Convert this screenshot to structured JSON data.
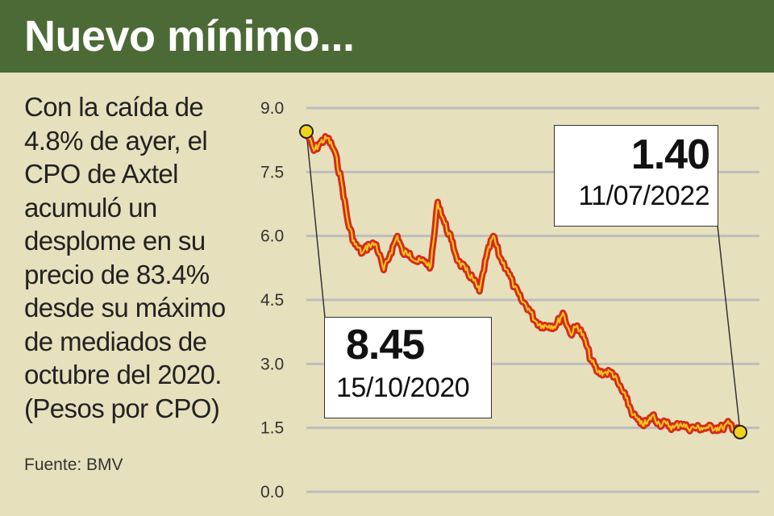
{
  "header": {
    "title": "Nuevo mínimo..."
  },
  "description": {
    "lines": [
      "Con la caída de",
      "4.8% de ayer, el",
      "CPO de Axtel",
      "acumuló un",
      "desplome en su",
      "precio de 83.4%",
      "desde su máximo",
      "de mediados de",
      "octubre del 2020.",
      "(Pesos por CPO)"
    ]
  },
  "source": "Fuente: BMV",
  "colors": {
    "header_bg": "#4b6a35",
    "background": "#e6e0bd",
    "line_outer": "#d42a1b",
    "line_inner": "#f6c318",
    "marker": "#f2d31b",
    "grid": "#bdbdbd"
  },
  "callouts": {
    "start": {
      "value": "8.45",
      "date": "15/10/2020"
    },
    "end": {
      "value": "1.40",
      "date": "11/07/2022"
    }
  },
  "chart_data": {
    "type": "line",
    "title": "Nuevo mínimo...",
    "xlabel": "",
    "ylabel": "(Pesos por CPO)",
    "ylim": [
      0,
      9
    ],
    "yticks": [
      "0.0",
      "1.5",
      "3.0",
      "4.5",
      "6.0",
      "7.5",
      "9.0"
    ],
    "grid": true,
    "x_range": [
      "15/10/2020",
      "11/07/2022"
    ],
    "series": [
      {
        "x": [
          "2020-10-15",
          "2020-10-26",
          "2020-11-05",
          "2020-11-15",
          "2020-11-25",
          "2020-12-05",
          "2020-12-15",
          "2020-12-25",
          "2021-01-05",
          "2021-01-15",
          "2021-01-25",
          "2021-02-05",
          "2021-02-15",
          "2021-02-25",
          "2021-03-05",
          "2021-03-15",
          "2021-03-25",
          "2021-04-05",
          "2021-04-15",
          "2021-04-25",
          "2021-05-05",
          "2021-05-15",
          "2021-05-25",
          "2021-06-05",
          "2021-06-15",
          "2021-06-25",
          "2021-07-05",
          "2021-07-15",
          "2021-07-25",
          "2021-08-05",
          "2021-08-15",
          "2021-08-25",
          "2021-09-05",
          "2021-09-15",
          "2021-09-25",
          "2021-10-05",
          "2021-10-15",
          "2021-10-25",
          "2021-11-05",
          "2021-11-15",
          "2021-11-25",
          "2021-12-05",
          "2021-12-15",
          "2021-12-25",
          "2022-01-05",
          "2022-01-15",
          "2022-01-25",
          "2022-02-05",
          "2022-02-15",
          "2022-02-25",
          "2022-03-05",
          "2022-03-15",
          "2022-03-25",
          "2022-04-05",
          "2022-04-15",
          "2022-04-25",
          "2022-05-05",
          "2022-05-15",
          "2022-05-25",
          "2022-06-05",
          "2022-06-15",
          "2022-06-25",
          "2022-07-05",
          "2022-07-11"
        ],
        "values": [
          8.45,
          8.0,
          8.2,
          8.3,
          8.0,
          7.3,
          6.3,
          5.8,
          5.6,
          5.8,
          5.8,
          5.2,
          5.6,
          6.0,
          5.6,
          5.6,
          5.4,
          5.4,
          5.3,
          6.8,
          6.3,
          5.9,
          5.4,
          5.2,
          5.0,
          4.7,
          5.5,
          6.0,
          5.5,
          5.2,
          4.8,
          4.5,
          4.3,
          4.0,
          3.9,
          3.9,
          3.9,
          4.2,
          3.7,
          3.9,
          3.6,
          3.1,
          2.8,
          2.8,
          2.8,
          2.5,
          2.2,
          1.8,
          1.6,
          1.6,
          1.8,
          1.6,
          1.6,
          1.5,
          1.6,
          1.5,
          1.5,
          1.5,
          1.5,
          1.5,
          1.5,
          1.6,
          1.45,
          1.4
        ]
      }
    ],
    "annotations": [
      {
        "label": "8.45",
        "date": "15/10/2020",
        "y": 8.45
      },
      {
        "label": "1.40",
        "date": "11/07/2022",
        "y": 1.4
      }
    ]
  }
}
